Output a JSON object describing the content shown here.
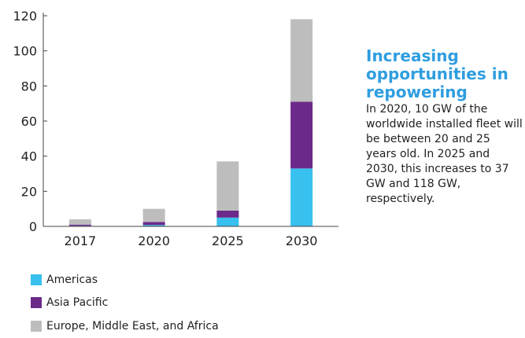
{
  "chart_data": {
    "type": "bar",
    "stacked": true,
    "categories": [
      "2017",
      "2020",
      "2025",
      "2030"
    ],
    "series": [
      {
        "name": "Americas",
        "color": "#38c0ee",
        "values": [
          0.3,
          0.8,
          5,
          33
        ]
      },
      {
        "name": "Asia Pacific",
        "color": "#6b2a8a",
        "values": [
          0.7,
          1.7,
          4,
          38
        ]
      },
      {
        "name": "Europe, Middle East, and Africa",
        "color": "#bdbdbd",
        "values": [
          3,
          7.5,
          28,
          47
        ]
      }
    ],
    "ylim": [
      0,
      120
    ],
    "yticks": [
      "0",
      "20",
      "40",
      "60",
      "80",
      "100",
      "120"
    ],
    "grid": false,
    "legend_position": "bottom-left"
  },
  "panel": {
    "title": "Increasing\nopportunities in\nrepowering",
    "text": "In 2020, 10 GW of the worldwide installed fleet will be between 20 and 25 years old. In 2025 and 2030, this increases to 37 GW and 118 GW, respectively."
  }
}
